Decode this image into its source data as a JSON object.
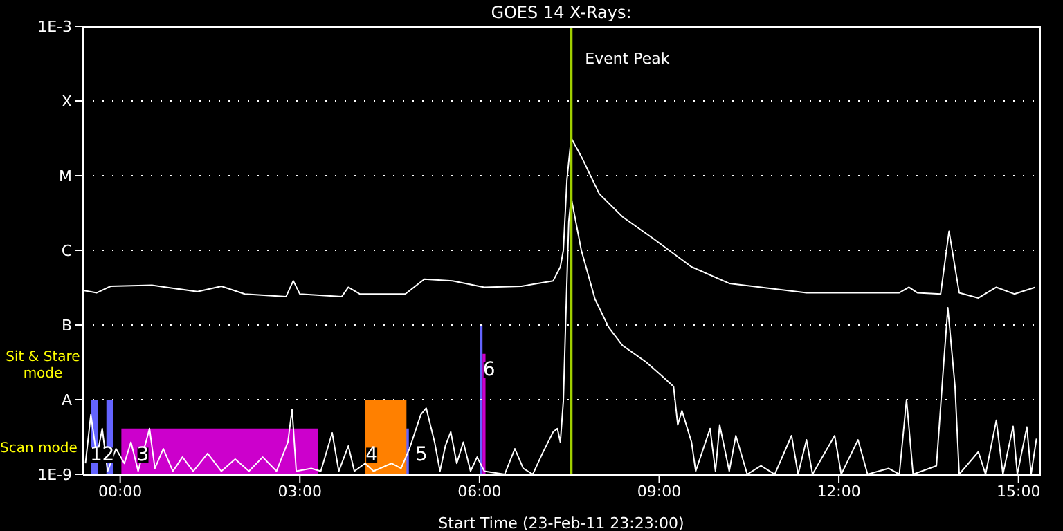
{
  "chart_data": {
    "type": "line",
    "title": "GOES 14 X-Rays:",
    "xlabel": "Start Time (23-Feb-11 23:23:00)",
    "log": "y",
    "grid": "y",
    "xlim": [
      -0.62,
      15.35
    ],
    "xticks": [
      {
        "value": 0,
        "label": "00:00"
      },
      {
        "value": 3,
        "label": "03:00"
      },
      {
        "value": 6,
        "label": "06:00"
      },
      {
        "value": 9,
        "label": "09:00"
      },
      {
        "value": 12,
        "label": "12:00"
      },
      {
        "value": 15,
        "label": "15:00"
      }
    ],
    "ylim": [
      1e-09,
      0.001
    ],
    "yticks": [
      {
        "value": 1e-09,
        "label": "1E-9"
      },
      {
        "value": 1e-08,
        "label": "A"
      },
      {
        "value": 1e-07,
        "label": "B"
      },
      {
        "value": 1e-06,
        "label": "C"
      },
      {
        "value": 1e-05,
        "label": "M"
      },
      {
        "value": 0.0001,
        "label": "X"
      },
      {
        "value": 0.001,
        "label": "1E-3"
      }
    ],
    "series": [
      {
        "type": "area",
        "color": "#6464ff",
        "x": [
          -0.49,
          -0.37,
          -0.36,
          -0.23,
          -0.12,
          -0.11,
          4.77,
          4.82,
          4.83,
          6.01,
          6.05
        ],
        "values": [
          1e-08,
          1e-08,
          null,
          1e-08,
          1e-08,
          null,
          4.1e-09,
          4.1e-09,
          null,
          1e-07,
          1e-07
        ]
      },
      {
        "type": "area",
        "color": "#cc00cc",
        "x": [
          0.02,
          3.3,
          3.31,
          6.05,
          6.1
        ],
        "values": [
          4.1e-09,
          4.1e-09,
          null,
          4.1e-08,
          4.1e-08
        ]
      },
      {
        "type": "area",
        "color": "#ff8000",
        "x": [
          4.09,
          4.78
        ],
        "values": [
          1e-08,
          1e-08
        ]
      },
      {
        "color": "#ffffff",
        "x": [
          -0.62,
          -0.39,
          -0.16,
          0.53,
          1.29,
          1.69,
          2.08,
          2.77,
          2.89,
          3.0,
          3.7,
          3.81,
          4.0,
          4.76,
          5.08,
          5.55,
          6.08,
          6.7,
          7.23,
          7.35,
          7.4,
          7.46,
          7.53,
          7.7,
          8.0,
          8.39,
          8.92,
          9.54,
          10.17,
          10.7,
          11.46,
          13.01,
          13.17,
          13.31,
          13.7,
          13.84,
          14.01,
          14.33,
          14.63,
          14.93,
          15.28
        ],
        "values": [
          2.9e-07,
          2.7e-07,
          3.3e-07,
          3.4e-07,
          2.8e-07,
          3.3e-07,
          2.6e-07,
          2.4e-07,
          3.9e-07,
          2.6e-07,
          2.4e-07,
          3.2e-07,
          2.6e-07,
          2.6e-07,
          4.1e-07,
          3.9e-07,
          3.2e-07,
          3.3e-07,
          3.9e-07,
          6e-07,
          1e-06,
          8.8e-06,
          3.2e-05,
          1.8e-05,
          5.7e-06,
          2.8e-06,
          1.4e-06,
          6e-07,
          3.6e-07,
          3.2e-07,
          2.7e-07,
          2.7e-07,
          3.2e-07,
          2.7e-07,
          2.6e-07,
          1.8e-06,
          2.7e-07,
          2.3e-07,
          3.2e-07,
          2.6e-07,
          3.2e-07
        ]
      },
      {
        "color": "#ffffff",
        "x": [
          -0.58,
          -0.49,
          -0.39,
          -0.3,
          -0.21,
          -0.07,
          0.07,
          0.18,
          0.3,
          0.49,
          0.58,
          0.72,
          0.88,
          1.04,
          1.22,
          1.46,
          1.69,
          1.92,
          2.15,
          2.38,
          2.61,
          2.8,
          2.87,
          2.94,
          3.19,
          3.35,
          3.54,
          3.65,
          3.81,
          3.91,
          4.09,
          4.23,
          4.53,
          4.69,
          4.83,
          5.02,
          5.11,
          5.25,
          5.34,
          5.43,
          5.52,
          5.62,
          5.73,
          5.85,
          5.96,
          6.08,
          6.42,
          6.59,
          6.73,
          6.89,
          7.05,
          7.23,
          7.3,
          7.35,
          7.4,
          7.44,
          7.49,
          7.53,
          7.7,
          7.93,
          8.16,
          8.39,
          8.78,
          9.01,
          9.24,
          9.31,
          9.38,
          9.54,
          9.61,
          9.85,
          9.94,
          10.01,
          10.17,
          10.28,
          10.47,
          10.7,
          10.93,
          11.21,
          11.32,
          11.46,
          11.56,
          11.93,
          12.04,
          12.32,
          12.48,
          12.83,
          13.01,
          13.13,
          13.24,
          13.63,
          13.75,
          13.82,
          13.94,
          14.01,
          14.33,
          14.45,
          14.63,
          14.74,
          14.91,
          14.98,
          15.14,
          15.21,
          15.3
        ],
        "values": [
          1.4e-09,
          6.3e-09,
          1.7e-09,
          4.1e-09,
          1.1e-09,
          2.2e-09,
          1.4e-09,
          2.7e-09,
          1.1e-09,
          4.1e-09,
          1.2e-09,
          2.2e-09,
          1.1e-09,
          1.7e-09,
          1.1e-09,
          1.9e-09,
          1.1e-09,
          1.6e-09,
          1.1e-09,
          1.7e-09,
          1.1e-09,
          2.7e-09,
          7.4e-09,
          1.1e-09,
          1.2e-09,
          1.1e-09,
          3.6e-09,
          1.1e-09,
          2.4e-09,
          1.1e-09,
          1.4e-09,
          1.1e-09,
          1.4e-09,
          1.2e-09,
          2.2e-09,
          6.3e-09,
          7.7e-09,
          2.7e-09,
          1.1e-09,
          2.4e-09,
          3.7e-09,
          1.4e-09,
          2.7e-09,
          1.1e-09,
          1.7e-09,
          1.1e-09,
          1e-09,
          2.2e-09,
          1.2e-09,
          1e-09,
          1.9e-09,
          3.7e-09,
          4.1e-09,
          2.7e-09,
          9.6e-09,
          1.2e-07,
          2.4e-06,
          5.1e-06,
          1e-06,
          2.2e-07,
          9.2e-08,
          5.3e-08,
          3.2e-08,
          2.2e-08,
          1.5e-08,
          4.6e-09,
          7.1e-09,
          2.7e-09,
          1.1e-09,
          4.1e-09,
          1.1e-09,
          4.6e-09,
          1.1e-09,
          3.3e-09,
          1e-09,
          1.3e-09,
          1e-09,
          3.3e-09,
          1e-09,
          2.9e-09,
          1e-09,
          3.3e-09,
          1e-09,
          2.9e-09,
          1e-09,
          1.2e-09,
          1e-09,
          1e-08,
          1e-09,
          1.3e-09,
          3e-08,
          1.7e-07,
          1.5e-08,
          1e-09,
          2e-09,
          1e-09,
          5.3e-09,
          1e-09,
          4.4e-09,
          1e-09,
          4.3e-09,
          1e-09,
          3e-09
        ]
      }
    ],
    "ref_lines": [
      {
        "axis": "x",
        "value": 7.53,
        "label": "Event Peak",
        "color": "#a0d000"
      }
    ],
    "annotations": [
      {
        "text": "1",
        "x": -0.4,
        "y": 1.8e-09
      },
      {
        "text": "2",
        "x": -0.2,
        "y": 1.8e-09
      },
      {
        "text": "3",
        "x": 0.38,
        "y": 1.8e-09
      },
      {
        "text": "4",
        "x": 4.2,
        "y": 1.8e-09
      },
      {
        "text": "5",
        "x": 5.03,
        "y": 1.8e-09
      },
      {
        "text": "6",
        "x": 6.16,
        "y": 2.5e-08
      },
      "Sit & Stare mode",
      "Scan mode"
    ]
  }
}
